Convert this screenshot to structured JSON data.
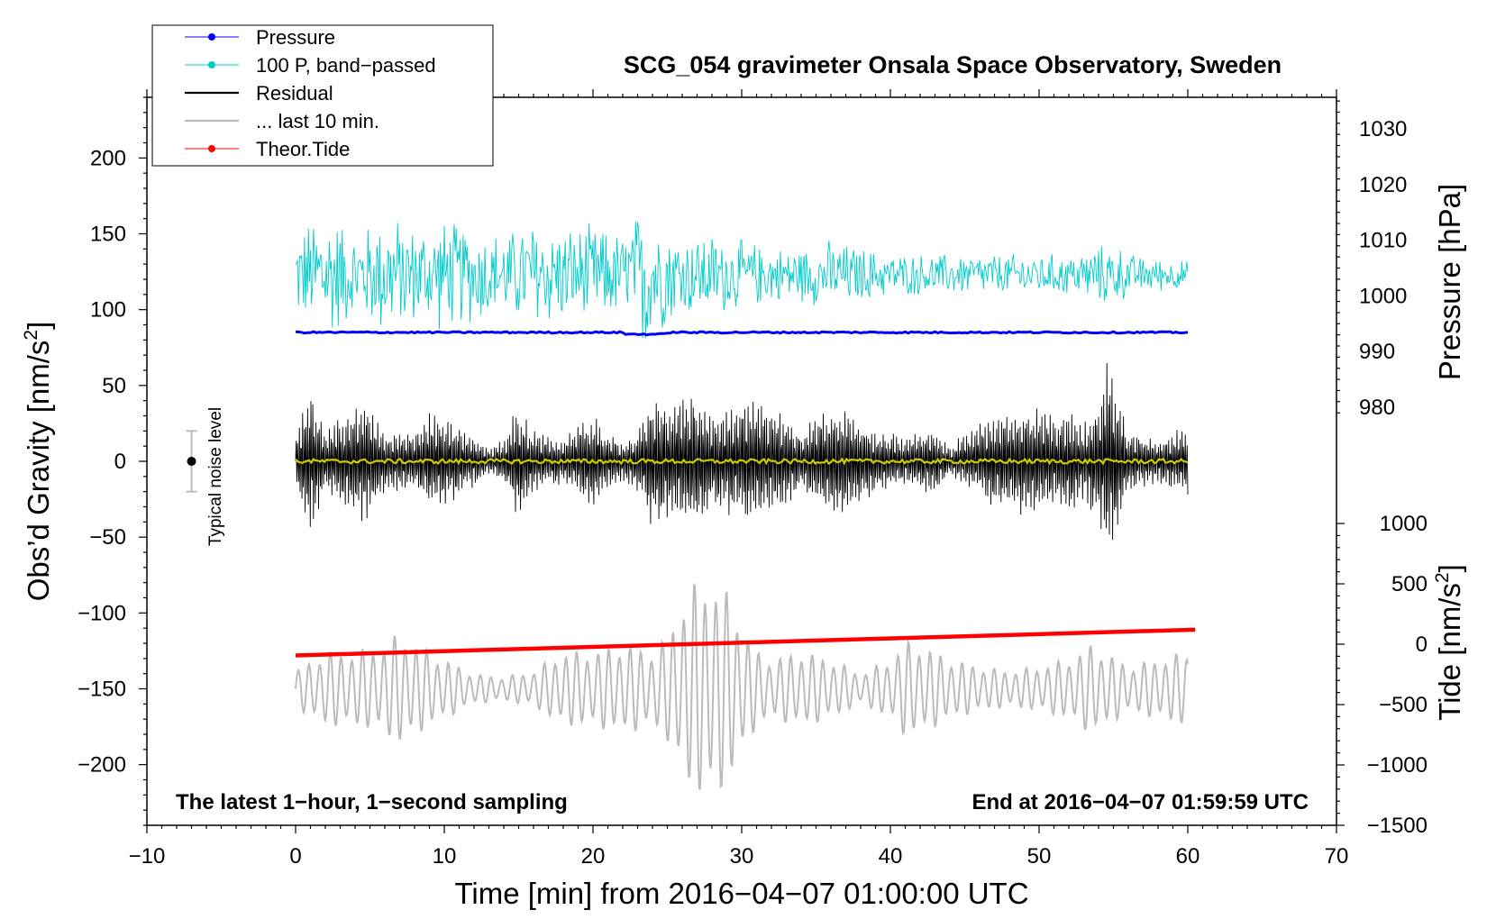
{
  "chart_data": {
    "type": "line",
    "title": "SCG_054 gravimeter Onsala Space Observatory, Sweden",
    "xlabel": "Time [min] from 2016−04−07 01:00:00 UTC",
    "ylabel_left": "Obs’d Gravity [nm/s",
    "ylabel_left_sup": "2",
    "ylabel_left_end": "]",
    "ylabel_right_pressure": "Pressure [hPa]",
    "ylabel_right_tide": "Tide [nm/s",
    "ylabel_right_tide_sup": "2",
    "ylabel_right_tide_end": "]",
    "xlim": [
      -10,
      70
    ],
    "ylim_left": [
      -240,
      240
    ],
    "x_ticks": [
      {
        "value": -10,
        "label": "−10"
      },
      {
        "value": 0,
        "label": "0"
      },
      {
        "value": 10,
        "label": "10"
      },
      {
        "value": 20,
        "label": "20"
      },
      {
        "value": 30,
        "label": "30"
      },
      {
        "value": 40,
        "label": "40"
      },
      {
        "value": 50,
        "label": "50"
      },
      {
        "value": 60,
        "label": "60"
      },
      {
        "value": 70,
        "label": "70"
      }
    ],
    "y_ticks_left": [
      {
        "value": 200,
        "label": "200"
      },
      {
        "value": 150,
        "label": "150"
      },
      {
        "value": 100,
        "label": "100"
      },
      {
        "value": 50,
        "label": "50"
      },
      {
        "value": 0,
        "label": "0"
      },
      {
        "value": -50,
        "label": "−50"
      },
      {
        "value": -100,
        "label": "−100"
      },
      {
        "value": -150,
        "label": "−150"
      },
      {
        "value": -200,
        "label": "−200"
      }
    ],
    "pressure_axis": {
      "range": [
        975,
        1035
      ],
      "ticks": [
        {
          "value": 1030,
          "label": "1030"
        },
        {
          "value": 1020,
          "label": "1020"
        },
        {
          "value": 1010,
          "label": "1010"
        },
        {
          "value": 1000,
          "label": "1000"
        },
        {
          "value": 990,
          "label": "990"
        },
        {
          "value": 980,
          "label": "980"
        }
      ]
    },
    "tide_axis": {
      "range": [
        -1500,
        1000
      ],
      "ticks": [
        {
          "value": 1000,
          "label": "1000"
        },
        {
          "value": 500,
          "label": "500"
        },
        {
          "value": 0,
          "label": "0"
        },
        {
          "value": -500,
          "label": "−500"
        },
        {
          "value": -1000,
          "label": "−1000"
        },
        {
          "value": -1500,
          "label": "−1500"
        }
      ]
    },
    "legend": [
      {
        "label": "Pressure",
        "color": "#0000ff",
        "marker": true
      },
      {
        "label": "100 P, band−passed",
        "color": "#00cccc",
        "marker": true
      },
      {
        "label": "Residual",
        "color": "#000000",
        "marker": false
      },
      {
        "label": "... last 10 min.",
        "color": "#bbbbbb",
        "marker": false
      },
      {
        "label": "Theor.Tide",
        "color": "#ff0000",
        "marker": true
      }
    ],
    "legend_position": "top-left",
    "annotations": {
      "bottom_left": "The latest 1−hour, 1−second sampling",
      "bottom_right": "End at 2016−04−07 01:59:59 UTC",
      "noise_label": "Typical noise level"
    },
    "noise_bar": {
      "x": -7,
      "center": 0,
      "half_range": 20
    },
    "series": [
      {
        "name": "Pressure",
        "color": "#0000ff",
        "x_range": [
          0,
          60
        ],
        "pressure_hPa_approx": 993,
        "left_axis_value": 85
      },
      {
        "name": "100 P, band−passed",
        "color": "#00cccc",
        "x_range": [
          0,
          60
        ],
        "center_left_axis": 123,
        "amplitude_max": 60
      },
      {
        "name": "Residual",
        "color": "#000000",
        "x_range": [
          0,
          60
        ],
        "center_left_axis": 0,
        "amplitude_max": 70
      },
      {
        "name": "smoothed",
        "color": "#cccc00",
        "x_range": [
          0,
          60
        ],
        "center_left_axis": 0
      },
      {
        "name": "... last 10 min.",
        "color": "#bbbbbb",
        "x_range": [
          0,
          60
        ],
        "center_left_axis": -150,
        "amplitude_max": 75
      },
      {
        "name": "Theor.Tide",
        "color": "#ff0000",
        "x_range": [
          0,
          60.5
        ],
        "tide_start_nm_s2": -100,
        "tide_end_nm_s2": 100,
        "left_start": -128,
        "left_end": -111
      }
    ],
    "envelopes": {
      "residual": [
        [
          0,
          20
        ],
        [
          1,
          50
        ],
        [
          2,
          20
        ],
        [
          4,
          40
        ],
        [
          5,
          40
        ],
        [
          6,
          20
        ],
        [
          8,
          20
        ],
        [
          9,
          35
        ],
        [
          10,
          30
        ],
        [
          12,
          18
        ],
        [
          13,
          8
        ],
        [
          14,
          15
        ],
        [
          15,
          40
        ],
        [
          16,
          20
        ],
        [
          18,
          15
        ],
        [
          19,
          25
        ],
        [
          20,
          35
        ],
        [
          21,
          18
        ],
        [
          22,
          14
        ],
        [
          23,
          20
        ],
        [
          24,
          45
        ],
        [
          25,
          40
        ],
        [
          26,
          42
        ],
        [
          27,
          45
        ],
        [
          28,
          30
        ],
        [
          29,
          35
        ],
        [
          30,
          42
        ],
        [
          31,
          40
        ],
        [
          32,
          38
        ],
        [
          33,
          30
        ],
        [
          34,
          20
        ],
        [
          35,
          30
        ],
        [
          36,
          35
        ],
        [
          37,
          40
        ],
        [
          38,
          30
        ],
        [
          39,
          20
        ],
        [
          40,
          20
        ],
        [
          41,
          15
        ],
        [
          42,
          20
        ],
        [
          43,
          22
        ],
        [
          44,
          10
        ],
        [
          45,
          20
        ],
        [
          46,
          25
        ],
        [
          47,
          30
        ],
        [
          48,
          35
        ],
        [
          49,
          40
        ],
        [
          50,
          35
        ],
        [
          51,
          30
        ],
        [
          52,
          35
        ],
        [
          53,
          25
        ],
        [
          54,
          45
        ],
        [
          54.7,
          70
        ],
        [
          55.5,
          40
        ],
        [
          56,
          20
        ],
        [
          58,
          15
        ],
        [
          60,
          25
        ]
      ],
      "pressure_bp": [
        [
          0,
          30
        ],
        [
          2,
          50
        ],
        [
          4,
          30
        ],
        [
          6,
          45
        ],
        [
          8,
          35
        ],
        [
          10,
          40
        ],
        [
          12,
          35
        ],
        [
          14,
          30
        ],
        [
          16,
          40
        ],
        [
          18,
          35
        ],
        [
          20,
          35
        ],
        [
          22,
          30
        ],
        [
          23,
          45
        ],
        [
          23.5,
          60
        ],
        [
          24.5,
          40
        ],
        [
          26,
          30
        ],
        [
          28,
          30
        ],
        [
          30,
          25
        ],
        [
          32,
          20
        ],
        [
          34,
          20
        ],
        [
          36,
          25
        ],
        [
          38,
          20
        ],
        [
          40,
          15
        ],
        [
          42,
          15
        ],
        [
          44,
          15
        ],
        [
          46,
          15
        ],
        [
          48,
          15
        ],
        [
          50,
          15
        ],
        [
          52,
          15
        ],
        [
          54,
          20
        ],
        [
          55,
          25
        ],
        [
          56,
          15
        ],
        [
          58,
          12
        ],
        [
          60,
          10
        ]
      ],
      "tail": [
        [
          0,
          12
        ],
        [
          2,
          25
        ],
        [
          4,
          25
        ],
        [
          6,
          30
        ],
        [
          7,
          38
        ],
        [
          9,
          25
        ],
        [
          10,
          20
        ],
        [
          12,
          10
        ],
        [
          14,
          8
        ],
        [
          16,
          12
        ],
        [
          18,
          25
        ],
        [
          20,
          25
        ],
        [
          22,
          30
        ],
        [
          24,
          25
        ],
        [
          25,
          35
        ],
        [
          26,
          60
        ],
        [
          27,
          72
        ],
        [
          28,
          75
        ],
        [
          29,
          65
        ],
        [
          30,
          45
        ],
        [
          31,
          25
        ],
        [
          32,
          20
        ],
        [
          34,
          25
        ],
        [
          36,
          20
        ],
        [
          38,
          10
        ],
        [
          40,
          20
        ],
        [
          41,
          32
        ],
        [
          42,
          30
        ],
        [
          44,
          20
        ],
        [
          46,
          15
        ],
        [
          48,
          12
        ],
        [
          50,
          15
        ],
        [
          52,
          20
        ],
        [
          53.5,
          30
        ],
        [
          54.5,
          25
        ],
        [
          56,
          15
        ],
        [
          58,
          20
        ],
        [
          60,
          25
        ]
      ]
    }
  }
}
